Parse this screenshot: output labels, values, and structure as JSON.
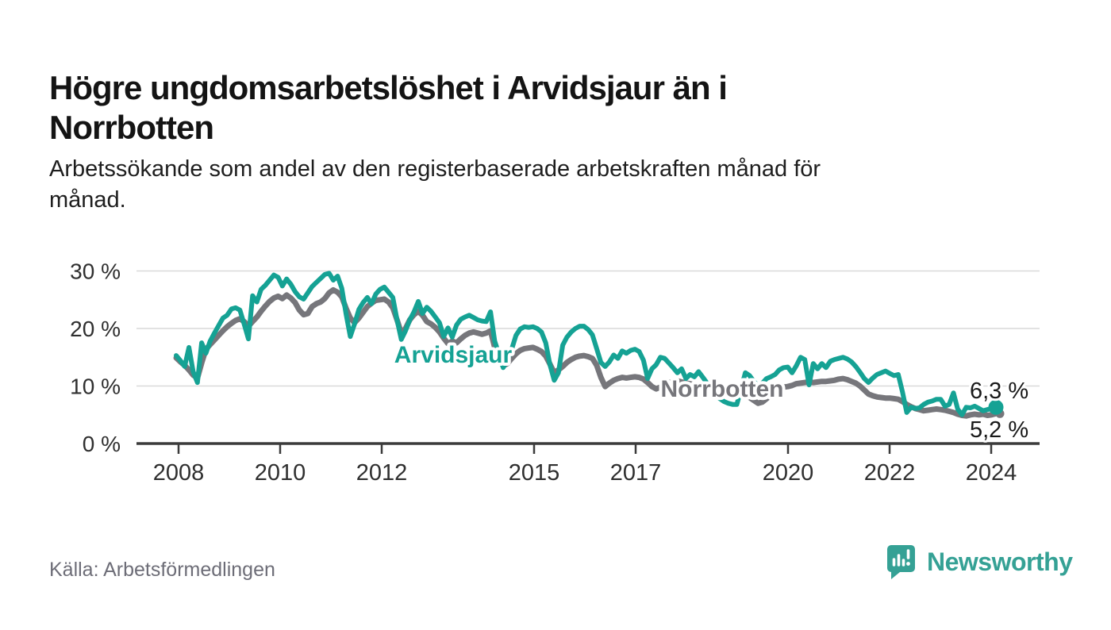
{
  "title_lines": [
    "Högre ungdomsarbetslöshet i Arvidsjaur än i",
    "Norrbotten"
  ],
  "subtitle_lines": [
    "Arbetssökande som andel av den registerbaserade arbetskraften månad för",
    "månad."
  ],
  "source": "Källa: Arbetsförmedlingen",
  "brand": {
    "name": "Newsworthy",
    "color": "#35a195",
    "icon": "bar-chart-speech-bubble-icon"
  },
  "colors": {
    "arvidsjaur": "#15a294",
    "norrbotten": "#76767b",
    "grid": "#d9d9d9",
    "axis": "#3b3b3b",
    "background": "#ffffff"
  },
  "chart_data": {
    "type": "line",
    "title": "Högre ungdomsarbetslöshet i Arvidsjaur än i Norrbotten",
    "subtitle": "Arbetssökande som andel av den registerbaserade arbetskraften månad för månad.",
    "unit": "%",
    "x_unit": "month",
    "x_range": [
      "2008-01",
      "2024-02"
    ],
    "ylim": [
      0,
      31
    ],
    "grid": "horizontal",
    "legend_position": "inline-labels",
    "x_ticks": [
      {
        "value": 2008,
        "label": "2008"
      },
      {
        "value": 2010,
        "label": "2010"
      },
      {
        "value": 2012,
        "label": "2012"
      },
      {
        "value": 2015,
        "label": "2015"
      },
      {
        "value": 2017,
        "label": "2017"
      },
      {
        "value": 2020,
        "label": "2020"
      },
      {
        "value": 2022,
        "label": "2022"
      },
      {
        "value": 2024,
        "label": "2024"
      }
    ],
    "y_ticks": [
      {
        "value": 0,
        "label": "0 %"
      },
      {
        "value": 10,
        "label": "10 %"
      },
      {
        "value": 20,
        "label": "20 %"
      },
      {
        "value": 30,
        "label": "30 %"
      }
    ],
    "series": [
      {
        "name": "Arvidsjaur",
        "color": "#15a294",
        "end_label": "6,3 %",
        "end_value": 6.3,
        "values": [
          15.3,
          14.4,
          13.4,
          16.7,
          12.5,
          10.6,
          17.5,
          15.7,
          17.8,
          19.2,
          20.5,
          21.8,
          22.3,
          23.4,
          23.6,
          23.2,
          20.8,
          18.2,
          25.7,
          24.6,
          26.8,
          27.5,
          28.4,
          29.3,
          28.9,
          27.4,
          28.6,
          27.7,
          26.4,
          25.5,
          25.1,
          26.2,
          27.3,
          28.0,
          28.7,
          29.4,
          29.6,
          28.4,
          29.1,
          27.0,
          22.5,
          18.6,
          20.8,
          23.3,
          24.5,
          25.4,
          24.3,
          26.0,
          26.8,
          27.2,
          26.3,
          25.4,
          21.5,
          18.1,
          19.6,
          21.5,
          22.9,
          24.7,
          22.6,
          23.7,
          23.0,
          22.0,
          21.0,
          18.6,
          20.1,
          18.5,
          20.6,
          21.6,
          22.0,
          22.3,
          21.9,
          21.5,
          21.3,
          21.2,
          22.9,
          17.8,
          15.5,
          13.2,
          14.5,
          16.4,
          18.8,
          19.9,
          20.3,
          20.2,
          20.3,
          20.0,
          19.4,
          17.5,
          13.7,
          11.0,
          12.3,
          17.1,
          18.5,
          19.4,
          20.0,
          20.4,
          20.4,
          19.8,
          18.9,
          16.5,
          14.1,
          13.4,
          14.2,
          15.4,
          14.8,
          16.1,
          15.7,
          16.2,
          16.4,
          16.0,
          14.5,
          11.3,
          13.0,
          13.7,
          15.0,
          14.8,
          14.0,
          13.2,
          12.3,
          13.0,
          11.3,
          12.0,
          11.6,
          12.5,
          11.5,
          10.5,
          9.5,
          8.5,
          7.8,
          7.3,
          7.0,
          6.8,
          6.8,
          9.5,
          12.3,
          11.8,
          10.8,
          10.0,
          10.5,
          11.3,
          11.6,
          12.0,
          12.8,
          13.2,
          13.3,
          12.3,
          13.5,
          15.0,
          14.6,
          10.2,
          13.9,
          13.0,
          13.9,
          13.2,
          14.3,
          14.6,
          14.8,
          15.0,
          14.7,
          14.2,
          13.4,
          12.4,
          11.3,
          10.6,
          11.4,
          12.0,
          12.3,
          12.6,
          12.2,
          11.8,
          12.0,
          9.0,
          5.4,
          6.3,
          6.1,
          6.2,
          6.8,
          7.2,
          7.4,
          7.7,
          7.7,
          6.5,
          6.8,
          8.8,
          6.0,
          5.0,
          6.3,
          6.2,
          6.5,
          6.1,
          5.7,
          5.9,
          6.1,
          6.3
        ]
      },
      {
        "name": "Norrbotten",
        "color": "#76767b",
        "end_label": "5,2 %",
        "end_value": 5.2,
        "values": [
          14.9,
          14.2,
          13.6,
          12.8,
          11.9,
          11.4,
          14.0,
          16.4,
          17.2,
          18.0,
          18.8,
          19.6,
          20.3,
          20.9,
          21.4,
          21.7,
          21.2,
          20.4,
          21.2,
          22.0,
          23.0,
          23.9,
          24.7,
          25.3,
          25.6,
          25.2,
          25.8,
          25.3,
          24.5,
          23.2,
          22.4,
          22.6,
          23.8,
          24.3,
          24.6,
          25.2,
          26.2,
          26.7,
          26.3,
          25.5,
          23.5,
          21.8,
          21.0,
          21.8,
          22.8,
          23.8,
          24.4,
          24.9,
          25.0,
          25.1,
          24.6,
          23.6,
          21.5,
          19.2,
          20.0,
          21.5,
          22.4,
          23.0,
          22.3,
          21.2,
          20.8,
          20.2,
          19.4,
          18.3,
          17.4,
          17.8,
          17.5,
          18.2,
          18.8,
          19.2,
          19.4,
          19.2,
          19.0,
          19.2,
          19.6,
          16.7,
          15.0,
          13.5,
          13.9,
          14.8,
          15.6,
          16.2,
          16.5,
          16.6,
          16.7,
          16.4,
          16.0,
          15.2,
          13.8,
          12.3,
          12.8,
          13.4,
          14.1,
          14.6,
          15.0,
          15.2,
          15.3,
          15.1,
          14.8,
          13.6,
          11.5,
          9.9,
          10.5,
          11.0,
          11.3,
          11.5,
          11.4,
          11.5,
          11.6,
          11.5,
          11.2,
          10.6,
          9.9,
          9.5,
          9.8,
          10.3,
          10.6,
          10.8,
          10.9,
          10.7,
          10.5,
          10.4,
          10.2,
          9.9,
          9.5,
          9.0,
          9.2,
          9.5,
          9.7,
          9.8,
          9.6,
          9.3,
          9.0,
          8.7,
          8.4,
          8.0,
          7.5,
          7.0,
          7.2,
          7.8,
          8.4,
          9.0,
          9.5,
          9.8,
          9.9,
          10.1,
          10.4,
          10.5,
          10.6,
          10.7,
          10.6,
          10.7,
          10.8,
          10.8,
          10.9,
          11.0,
          11.2,
          11.3,
          11.1,
          10.8,
          10.5,
          10.0,
          9.3,
          8.6,
          8.3,
          8.1,
          8.0,
          7.9,
          7.9,
          7.8,
          7.7,
          7.3,
          6.8,
          6.4,
          6.1,
          5.9,
          5.7,
          5.8,
          5.9,
          6.0,
          5.9,
          5.8,
          5.6,
          5.4,
          5.1,
          4.9,
          4.8,
          5.0,
          5.1,
          5.0,
          5.1,
          4.9,
          5.0,
          5.2
        ]
      }
    ]
  }
}
